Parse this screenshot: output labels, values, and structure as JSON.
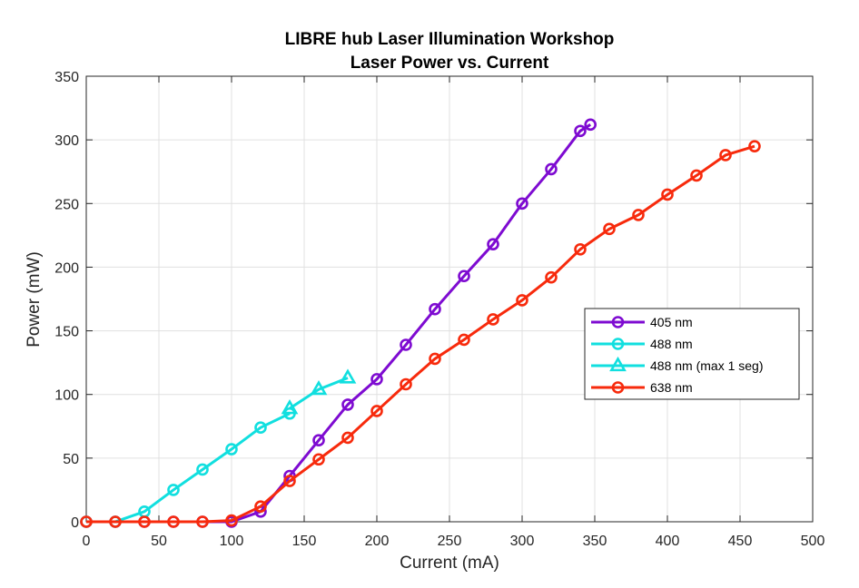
{
  "chart_data": {
    "type": "line",
    "title": [
      "LIBRE hub Laser Illumination Workshop",
      "Laser Power vs. Current"
    ],
    "xlabel": "Current (mA)",
    "ylabel": "Power (mW)",
    "xlim": [
      0,
      500
    ],
    "ylim": [
      0,
      350
    ],
    "xticks": [
      0,
      50,
      100,
      150,
      200,
      250,
      300,
      350,
      400,
      450,
      500
    ],
    "yticks": [
      0,
      50,
      100,
      150,
      200,
      250,
      300,
      350
    ],
    "grid": true,
    "legend_position": "right",
    "series": [
      {
        "name": "405 nm",
        "color": "#7e0bd1",
        "marker": "circle",
        "x": [
          0,
          20,
          40,
          60,
          80,
          100,
          120,
          140,
          160,
          180,
          200,
          220,
          240,
          260,
          280,
          300,
          320,
          340,
          347
        ],
        "y": [
          0,
          0,
          0,
          0,
          0,
          0,
          8,
          36,
          64,
          92,
          112,
          139,
          167,
          193,
          218,
          250,
          277,
          307,
          312
        ]
      },
      {
        "name": "488 nm",
        "color": "#11dfdf",
        "marker": "circle",
        "x": [
          0,
          20,
          40,
          60,
          80,
          100,
          120,
          140
        ],
        "y": [
          0,
          0,
          8,
          25,
          41,
          57,
          74,
          85
        ]
      },
      {
        "name": "488 nm (max 1 seg)",
        "color": "#11dfdf",
        "marker": "triangle",
        "x": [
          140,
          160,
          180
        ],
        "y": [
          89,
          104,
          113
        ]
      },
      {
        "name": "638 nm",
        "color": "#f72a0c",
        "marker": "circle",
        "x": [
          0,
          20,
          40,
          60,
          80,
          100,
          120,
          140,
          160,
          180,
          200,
          220,
          240,
          260,
          280,
          300,
          320,
          340,
          360,
          380,
          400,
          420,
          440,
          460
        ],
        "y": [
          0,
          0,
          0,
          0,
          0,
          1,
          12,
          32,
          49,
          66,
          87,
          108,
          128,
          143,
          159,
          174,
          192,
          214,
          230,
          241,
          257,
          272,
          288,
          295
        ]
      }
    ]
  }
}
